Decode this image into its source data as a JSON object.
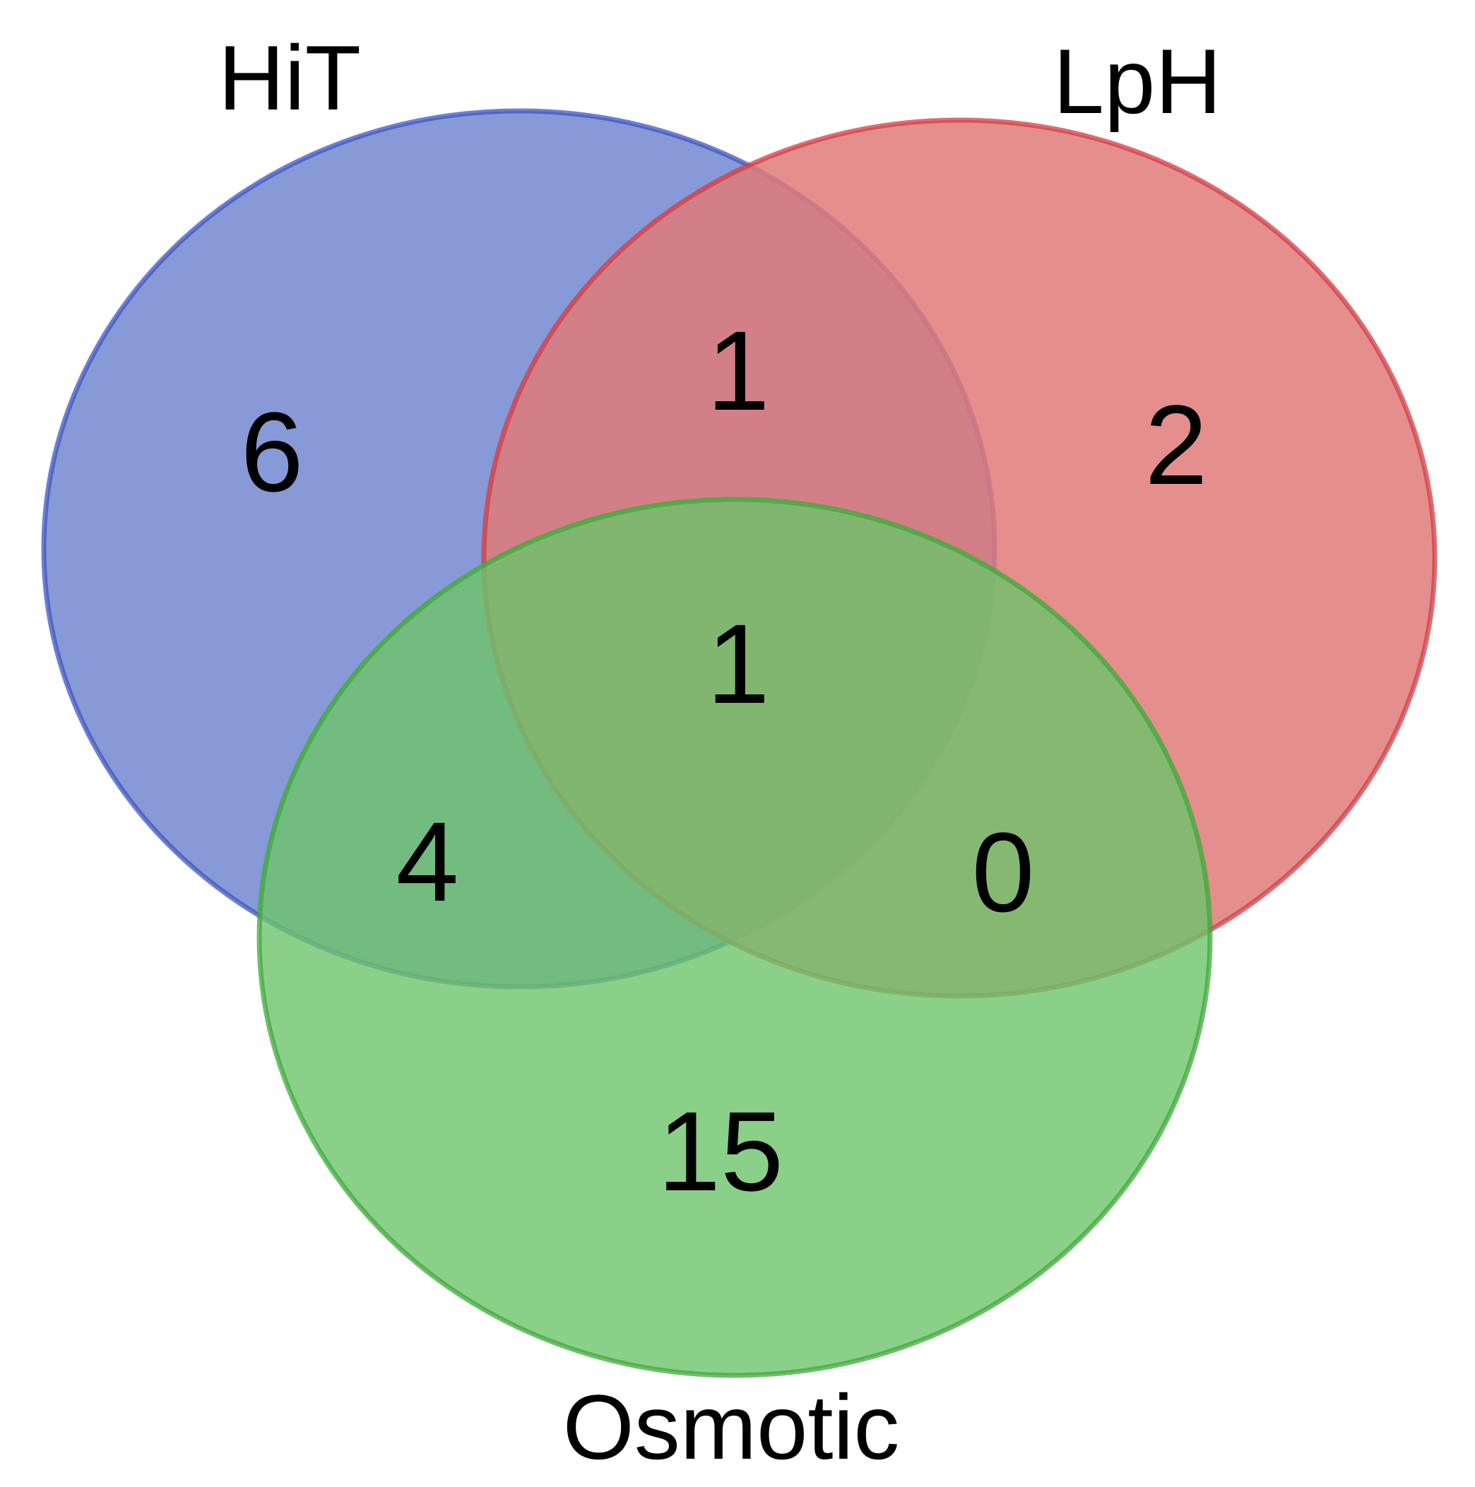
{
  "sets": [
    {
      "id": "hit",
      "label": "HiT",
      "fill_color": "#7a8ed1",
      "stroke_color": "#3f56c0"
    },
    {
      "id": "lph",
      "label": "LpH",
      "fill_color": "#e07a7a",
      "stroke_color": "#d23d45"
    },
    {
      "id": "osmotic",
      "label": "Osmotic",
      "fill_color": "#6dc46a",
      "stroke_color": "#3faa3a"
    }
  ],
  "regions": {
    "hit_only": "6",
    "lph_only": "2",
    "osmotic_only": "15",
    "hit_lph": "1",
    "hit_osmotic": "4",
    "lph_osmotic": "0",
    "all_three": "1"
  }
}
